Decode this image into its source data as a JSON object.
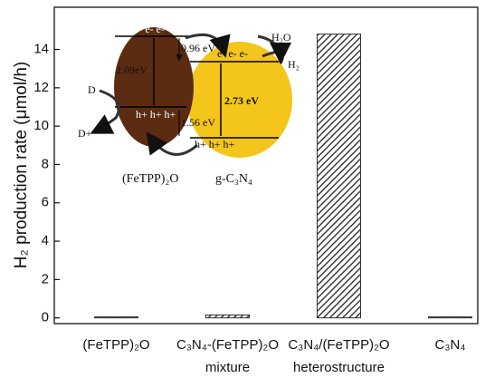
{
  "chart_data": {
    "type": "bar",
    "y_label": "H₂ production rate  (μmol/h)",
    "categories": [
      [
        "(FeTPP)₂O"
      ],
      [
        "C₃N₄-(FeTPP)₂O",
        "mixture"
      ],
      [
        "C₃N₄/(FeTPP)₂O",
        "heterostructure"
      ],
      [
        "C₃N₄"
      ]
    ],
    "values": [
      0.05,
      0.15,
      14.8,
      0.05
    ],
    "color": "#333333",
    "ylim": [
      -0.3,
      16.2
    ],
    "yticks": [
      0,
      2,
      4,
      6,
      8,
      10,
      12,
      14
    ],
    "grid": false
  },
  "inset": {
    "cb_left": "e-  e-  e-",
    "cb_right": "e-  e-  e-",
    "gap_cb": "0.96 eV",
    "gap_left": "2.09eV",
    "gap_vb": "1.56 eV",
    "gap_right": "2.73 eV",
    "vb_left": "h+  h+  h+",
    "vb_right": "h+  h+  h+",
    "donor": "D",
    "donor_ox": "D+",
    "water": "H₂O",
    "hydrogen": "H₂",
    "name_left": "(FeTPP)₂O",
    "name_right": "g-C₃N₄"
  }
}
